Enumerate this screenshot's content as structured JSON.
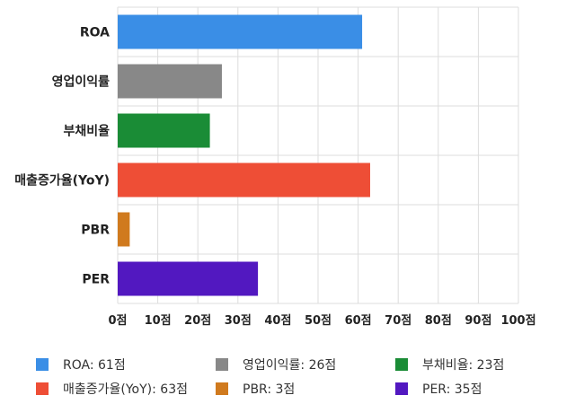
{
  "chart_data": {
    "type": "bar",
    "orientation": "horizontal",
    "categories": [
      "ROA",
      "영업이익률",
      "부채비율",
      "매출증가율(YoY)",
      "PBR",
      "PER"
    ],
    "values": [
      61,
      26,
      23,
      63,
      3,
      35
    ],
    "colors": [
      "#3a8ee6",
      "#888888",
      "#1a8c36",
      "#ee4e36",
      "#d07a1e",
      "#5218c0"
    ],
    "xlim": [
      0,
      100
    ],
    "x_ticks": [
      "0점",
      "10점",
      "20점",
      "30점",
      "40점",
      "50점",
      "60점",
      "70점",
      "80점",
      "90점",
      "100점"
    ],
    "grid": true,
    "legend": {
      "placement": "bottom",
      "items": [
        "ROA: 61점",
        "영업이익률: 26점",
        "부채비율: 23점",
        "매출증가율(YoY): 63점",
        "PBR: 3점",
        "PER: 35점"
      ]
    }
  }
}
